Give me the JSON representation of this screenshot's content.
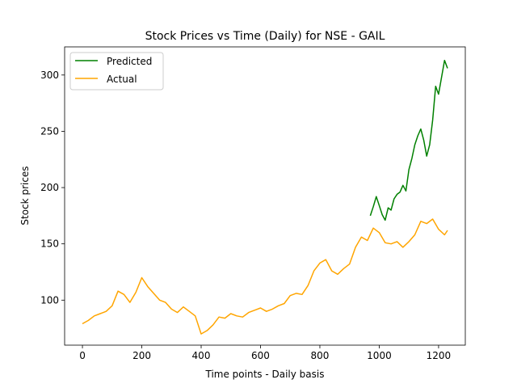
{
  "chart_data": {
    "type": "line",
    "title": "Stock Prices vs Time (Daily) for NSE - GAIL",
    "xlabel": "Time points - Daily basis",
    "ylabel": "Stock prices",
    "xlim": [
      -60,
      1290
    ],
    "ylim": [
      60,
      325
    ],
    "x_ticks": [
      0,
      200,
      400,
      600,
      800,
      1000,
      1200
    ],
    "y_ticks": [
      100,
      150,
      200,
      250,
      300
    ],
    "grid": false,
    "legend_position": "top-left",
    "series": [
      {
        "name": "Predicted",
        "color": "#008000",
        "x": [
          970,
          980,
          990,
          1000,
          1010,
          1020,
          1030,
          1040,
          1050,
          1060,
          1070,
          1080,
          1090,
          1100,
          1110,
          1120,
          1130,
          1140,
          1150,
          1160,
          1170,
          1180,
          1190,
          1200,
          1210,
          1220,
          1230
        ],
        "y": [
          175,
          183,
          192,
          184,
          176,
          171,
          182,
          180,
          190,
          194,
          196,
          202,
          197,
          216,
          226,
          238,
          246,
          252,
          242,
          228,
          238,
          260,
          290,
          283,
          298,
          313,
          306
        ]
      },
      {
        "name": "Actual",
        "color": "#ffa500",
        "x": [
          0,
          20,
          40,
          60,
          80,
          100,
          120,
          140,
          160,
          180,
          200,
          220,
          240,
          260,
          280,
          300,
          320,
          340,
          360,
          380,
          400,
          420,
          440,
          460,
          480,
          500,
          520,
          540,
          560,
          580,
          600,
          620,
          640,
          660,
          680,
          700,
          720,
          740,
          760,
          780,
          800,
          820,
          840,
          860,
          880,
          900,
          920,
          940,
          960,
          980,
          1000,
          1020,
          1040,
          1060,
          1080,
          1100,
          1120,
          1140,
          1160,
          1180,
          1200,
          1220,
          1230
        ],
        "y": [
          79,
          82,
          86,
          88,
          90,
          95,
          108,
          105,
          98,
          107,
          120,
          112,
          106,
          100,
          98,
          92,
          89,
          94,
          90,
          86,
          70,
          73,
          78,
          85,
          84,
          88,
          86,
          85,
          89,
          91,
          93,
          90,
          92,
          95,
          97,
          104,
          106,
          105,
          113,
          126,
          133,
          136,
          126,
          123,
          128,
          132,
          147,
          156,
          153,
          164,
          160,
          151,
          150,
          152,
          147,
          152,
          158,
          170,
          168,
          172,
          163,
          158,
          162
        ]
      }
    ]
  }
}
